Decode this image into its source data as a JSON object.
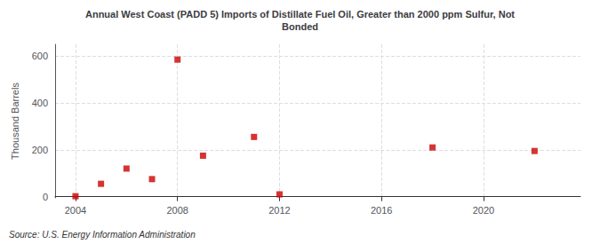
{
  "chart_data": {
    "type": "scatter",
    "title": "Annual West Coast (PADD 5) Imports of Distillate Fuel Oil, Greater than 2000 ppm Sulfur, Not\nBonded",
    "ylabel": "Thousand Barrels",
    "annotations": [
      "Source: U.S. Energy Information Administration"
    ],
    "x": [
      2004,
      2005,
      2006,
      2007,
      2008,
      2009,
      2011,
      2012,
      2018,
      2022
    ],
    "values": [
      2,
      55,
      120,
      75,
      585,
      175,
      255,
      10,
      210,
      195
    ],
    "color": "#cc0000",
    "marker": "square",
    "xlim": [
      2003.2,
      2023.8
    ],
    "xticks": [
      2004,
      2008,
      2012,
      2016,
      2020
    ],
    "ylim": [
      -5,
      650
    ],
    "yticks": [
      0,
      200,
      400,
      600
    ],
    "grid": true
  }
}
